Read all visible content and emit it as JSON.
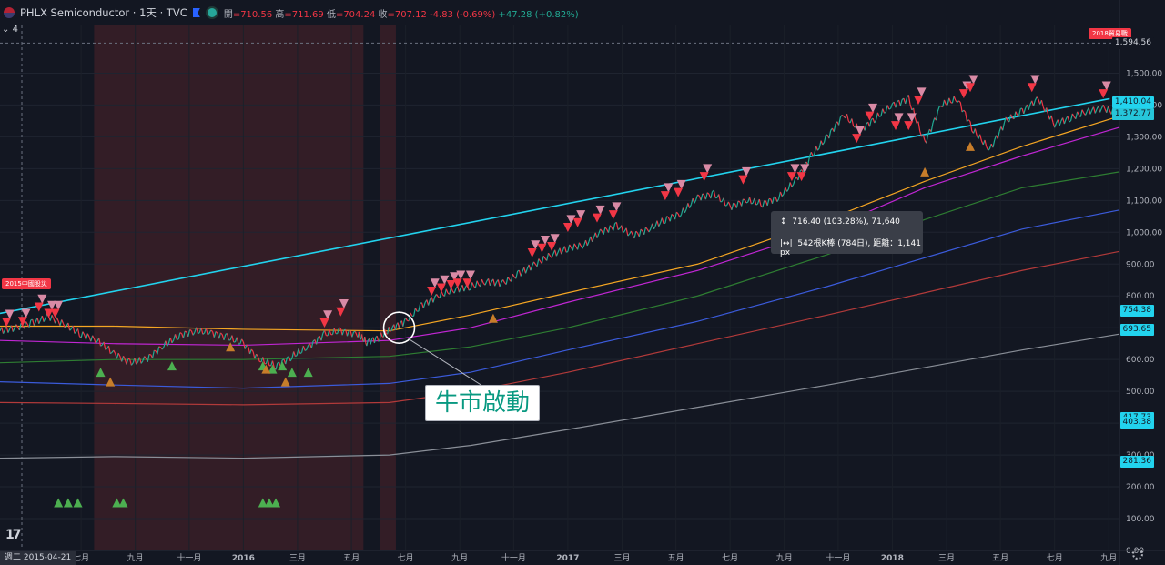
{
  "header": {
    "title": "PHLX Semiconductor · 1天 · TVC",
    "open_label": "開",
    "open": "=710.56",
    "high_label": "高",
    "high": "=711.69",
    "low_label": "低",
    "low": "=704.24",
    "close_label": "收",
    "close": "=707.12",
    "change": "-4.83 (-0.69%)",
    "change2": "+47.28 (+0.82%)"
  },
  "collapse_label": "4",
  "logo": "17",
  "annotation": {
    "text": "牛市啟動"
  },
  "measure": {
    "line1": "716.40 (103.28%), 71,640",
    "line2": "542根K棒 (784日), 距離：1,141 px",
    "icon1": "↕",
    "icon2": "|↔|"
  },
  "cursor_date": "週二 2015-04-21",
  "tags": {
    "left": "2015中國股災",
    "right": "2018貿易戰"
  },
  "price_badges": [
    {
      "value": "1,594.56",
      "price": 1594.56,
      "color": "#131722",
      "text": "#d1d4dc"
    },
    {
      "value": "1,410.04",
      "price": 1410.04,
      "color": "#22d3ee",
      "text": "#131722"
    },
    {
      "value": "1,372.77",
      "price": 1372.77,
      "color": "#26c6da",
      "text": "#131722"
    },
    {
      "value": "754.38",
      "price": 754.38,
      "color": "#22d3ee",
      "text": "#131722"
    },
    {
      "value": "693.65",
      "price": 693.65,
      "color": "#22d3ee",
      "text": "#131722"
    },
    {
      "value": "417.73",
      "price": 417.73,
      "color": "#22d3ee",
      "text": "#131722"
    },
    {
      "value": "403.38",
      "price": 403.38,
      "color": "#22d3ee",
      "text": "#131722"
    },
    {
      "value": "281.36",
      "price": 281.36,
      "color": "#22d3ee",
      "text": "#131722"
    }
  ],
  "colors": {
    "background": "#131722",
    "up": "#22ab94",
    "down": "#f23645",
    "bear_shade": "#3a1f27",
    "trendline": "#22d3ee"
  },
  "chart_data": {
    "type": "line",
    "title": "PHLX Semiconductor · 1天 · TVC",
    "ylim": [
      0,
      1650
    ],
    "y_ticks": [
      {
        "value": 0,
        "label": "0.00"
      },
      {
        "value": 100,
        "label": "100.00"
      },
      {
        "value": 200,
        "label": "200.00"
      },
      {
        "value": 300,
        "label": "300.00"
      },
      {
        "value": 400,
        "label": "400.00"
      },
      {
        "value": 500,
        "label": "500.00"
      },
      {
        "value": 600,
        "label": "600.00"
      },
      {
        "value": 700,
        "label": "700.00"
      },
      {
        "value": 800,
        "label": "800.00"
      },
      {
        "value": 900,
        "label": "900.00"
      },
      {
        "value": 1000,
        "label": "1,000.00"
      },
      {
        "value": 1100,
        "label": "1,100.00"
      },
      {
        "value": 1200,
        "label": "1,200.00"
      },
      {
        "value": 1300,
        "label": "1,300.00"
      },
      {
        "value": 1400,
        "label": "1,400.00"
      },
      {
        "value": 1500,
        "label": "1,500.00"
      }
    ],
    "x_ticks": [
      {
        "t": 2015.5,
        "label": "七月"
      },
      {
        "t": 2015.667,
        "label": "九月"
      },
      {
        "t": 2015.833,
        "label": "十一月"
      },
      {
        "t": 2016.0,
        "label": "2016"
      },
      {
        "t": 2016.167,
        "label": "三月"
      },
      {
        "t": 2016.333,
        "label": "五月"
      },
      {
        "t": 2016.5,
        "label": "七月"
      },
      {
        "t": 2016.667,
        "label": "九月"
      },
      {
        "t": 2016.833,
        "label": "十一月"
      },
      {
        "t": 2017.0,
        "label": "2017"
      },
      {
        "t": 2017.167,
        "label": "三月"
      },
      {
        "t": 2017.333,
        "label": "五月"
      },
      {
        "t": 2017.5,
        "label": "七月"
      },
      {
        "t": 2017.667,
        "label": "九月"
      },
      {
        "t": 2017.833,
        "label": "十一月"
      },
      {
        "t": 2018.0,
        "label": "2018"
      },
      {
        "t": 2018.167,
        "label": "三月"
      },
      {
        "t": 2018.333,
        "label": "五月"
      },
      {
        "t": 2018.5,
        "label": "七月"
      },
      {
        "t": 2018.667,
        "label": "九月"
      }
    ],
    "xlim": [
      2015.25,
      2018.7
    ],
    "bear_shade": [
      [
        2015.54,
        2016.37
      ],
      [
        2016.42,
        2016.47
      ]
    ],
    "price": [
      [
        2015.25,
        690
      ],
      [
        2015.3,
        700
      ],
      [
        2015.35,
        715
      ],
      [
        2015.4,
        735
      ],
      [
        2015.45,
        710
      ],
      [
        2015.5,
        680
      ],
      [
        2015.55,
        660
      ],
      [
        2015.6,
        620
      ],
      [
        2015.65,
        590
      ],
      [
        2015.7,
        600
      ],
      [
        2015.75,
        640
      ],
      [
        2015.8,
        675
      ],
      [
        2015.85,
        690
      ],
      [
        2015.9,
        685
      ],
      [
        2015.95,
        670
      ],
      [
        2016.0,
        650
      ],
      [
        2016.05,
        600
      ],
      [
        2016.1,
        580
      ],
      [
        2016.15,
        610
      ],
      [
        2016.2,
        640
      ],
      [
        2016.25,
        680
      ],
      [
        2016.3,
        690
      ],
      [
        2016.35,
        680
      ],
      [
        2016.38,
        655
      ],
      [
        2016.42,
        670
      ],
      [
        2016.46,
        700
      ],
      [
        2016.5,
        720
      ],
      [
        2016.55,
        770
      ],
      [
        2016.6,
        800
      ],
      [
        2016.65,
        820
      ],
      [
        2016.7,
        830
      ],
      [
        2016.75,
        845
      ],
      [
        2016.8,
        840
      ],
      [
        2016.85,
        870
      ],
      [
        2016.9,
        900
      ],
      [
        2016.95,
        930
      ],
      [
        2017.0,
        950
      ],
      [
        2017.05,
        960
      ],
      [
        2017.1,
        1000
      ],
      [
        2017.15,
        1020
      ],
      [
        2017.2,
        990
      ],
      [
        2017.25,
        1010
      ],
      [
        2017.3,
        1040
      ],
      [
        2017.35,
        1060
      ],
      [
        2017.4,
        1110
      ],
      [
        2017.45,
        1120
      ],
      [
        2017.5,
        1080
      ],
      [
        2017.55,
        1100
      ],
      [
        2017.6,
        1090
      ],
      [
        2017.65,
        1110
      ],
      [
        2017.7,
        1160
      ],
      [
        2017.75,
        1240
      ],
      [
        2017.8,
        1300
      ],
      [
        2017.85,
        1370
      ],
      [
        2017.9,
        1320
      ],
      [
        2017.95,
        1360
      ],
      [
        2018.0,
        1400
      ],
      [
        2018.05,
        1420
      ],
      [
        2018.1,
        1280
      ],
      [
        2018.15,
        1400
      ],
      [
        2018.2,
        1420
      ],
      [
        2018.25,
        1320
      ],
      [
        2018.3,
        1260
      ],
      [
        2018.35,
        1350
      ],
      [
        2018.4,
        1380
      ],
      [
        2018.45,
        1420
      ],
      [
        2018.5,
        1340
      ],
      [
        2018.55,
        1360
      ],
      [
        2018.6,
        1380
      ],
      [
        2018.65,
        1390
      ],
      [
        2018.7,
        1372
      ]
    ],
    "series": [
      {
        "color": "#f5a623",
        "values": [
          [
            2015.25,
            705
          ],
          [
            2015.6,
            705
          ],
          [
            2016.0,
            695
          ],
          [
            2016.45,
            690
          ],
          [
            2016.7,
            740
          ],
          [
            2017.0,
            810
          ],
          [
            2017.4,
            900
          ],
          [
            2017.8,
            1040
          ],
          [
            2018.1,
            1160
          ],
          [
            2018.4,
            1270
          ],
          [
            2018.7,
            1365
          ]
        ]
      },
      {
        "color": "#c026d3",
        "values": [
          [
            2015.25,
            660
          ],
          [
            2015.6,
            650
          ],
          [
            2016.0,
            645
          ],
          [
            2016.45,
            660
          ],
          [
            2016.7,
            700
          ],
          [
            2017.0,
            780
          ],
          [
            2017.4,
            880
          ],
          [
            2017.8,
            1010
          ],
          [
            2018.1,
            1140
          ],
          [
            2018.4,
            1240
          ],
          [
            2018.7,
            1330
          ]
        ]
      },
      {
        "color": "#2e7d32",
        "values": [
          [
            2015.25,
            590
          ],
          [
            2015.6,
            600
          ],
          [
            2016.0,
            600
          ],
          [
            2016.45,
            610
          ],
          [
            2016.7,
            640
          ],
          [
            2017.0,
            700
          ],
          [
            2017.4,
            800
          ],
          [
            2017.8,
            930
          ],
          [
            2018.1,
            1040
          ],
          [
            2018.4,
            1140
          ],
          [
            2018.7,
            1190
          ]
        ]
      },
      {
        "color": "#3b5bdb",
        "values": [
          [
            2015.25,
            530
          ],
          [
            2015.6,
            520
          ],
          [
            2016.0,
            510
          ],
          [
            2016.45,
            525
          ],
          [
            2016.7,
            560
          ],
          [
            2017.0,
            630
          ],
          [
            2017.4,
            720
          ],
          [
            2017.8,
            830
          ],
          [
            2018.1,
            920
          ],
          [
            2018.4,
            1010
          ],
          [
            2018.7,
            1070
          ]
        ]
      },
      {
        "color": "#b23a3a",
        "values": [
          [
            2015.25,
            465
          ],
          [
            2015.6,
            462
          ],
          [
            2016.0,
            458
          ],
          [
            2016.45,
            465
          ],
          [
            2016.7,
            500
          ],
          [
            2017.0,
            560
          ],
          [
            2017.4,
            650
          ],
          [
            2017.8,
            740
          ],
          [
            2018.1,
            810
          ],
          [
            2018.4,
            880
          ],
          [
            2018.7,
            940
          ]
        ]
      },
      {
        "color": "#8a8f98",
        "values": [
          [
            2015.25,
            290
          ],
          [
            2015.6,
            295
          ],
          [
            2016.0,
            290
          ],
          [
            2016.45,
            300
          ],
          [
            2016.7,
            330
          ],
          [
            2017.0,
            380
          ],
          [
            2017.4,
            450
          ],
          [
            2017.8,
            520
          ],
          [
            2018.1,
            575
          ],
          [
            2018.4,
            630
          ],
          [
            2018.7,
            680
          ]
        ]
      }
    ],
    "trendline": [
      [
        2015.25,
        745
      ],
      [
        2018.67,
        1420
      ]
    ],
    "down_markers": [
      [
        2015.28,
        742
      ],
      [
        2015.33,
        745
      ],
      [
        2015.38,
        790
      ],
      [
        2015.41,
        770
      ],
      [
        2015.43,
        770
      ],
      [
        2016.26,
        740
      ],
      [
        2016.31,
        775
      ],
      [
        2016.59,
        840
      ],
      [
        2016.62,
        850
      ],
      [
        2016.65,
        860
      ],
      [
        2016.67,
        865
      ],
      [
        2016.7,
        865
      ],
      [
        2016.9,
        960
      ],
      [
        2016.93,
        975
      ],
      [
        2016.96,
        980
      ],
      [
        2017.01,
        1040
      ],
      [
        2017.04,
        1055
      ],
      [
        2017.1,
        1070
      ],
      [
        2017.15,
        1080
      ],
      [
        2017.31,
        1140
      ],
      [
        2017.35,
        1150
      ],
      [
        2017.43,
        1200
      ],
      [
        2017.55,
        1190
      ],
      [
        2017.7,
        1200
      ],
      [
        2017.73,
        1200
      ],
      [
        2017.9,
        1320
      ],
      [
        2017.94,
        1390
      ],
      [
        2018.02,
        1360
      ],
      [
        2018.06,
        1360
      ],
      [
        2018.09,
        1440
      ],
      [
        2018.23,
        1460
      ],
      [
        2018.25,
        1480
      ],
      [
        2018.44,
        1480
      ],
      [
        2018.66,
        1460
      ]
    ],
    "up_markers": [
      [
        2015.56,
        560
      ],
      [
        2015.78,
        580
      ],
      [
        2016.06,
        580
      ],
      [
        2016.09,
        570
      ],
      [
        2016.12,
        580
      ],
      [
        2016.15,
        560
      ],
      [
        2016.2,
        560
      ]
    ],
    "orange_markers": [
      [
        2015.59,
        530
      ],
      [
        2015.96,
        640
      ],
      [
        2016.07,
        570
      ],
      [
        2016.13,
        530
      ],
      [
        2016.77,
        730
      ],
      [
        2018.1,
        1190
      ],
      [
        2018.24,
        1270
      ]
    ],
    "bottom_markers": [
      [
        2015.43,
        150
      ],
      [
        2015.46,
        150
      ],
      [
        2015.49,
        150
      ],
      [
        2015.61,
        150
      ],
      [
        2015.63,
        150
      ],
      [
        2016.06,
        150
      ],
      [
        2016.08,
        150
      ],
      [
        2016.1,
        150
      ]
    ],
    "cycle_circle": [
      2016.48,
      700
    ]
  }
}
